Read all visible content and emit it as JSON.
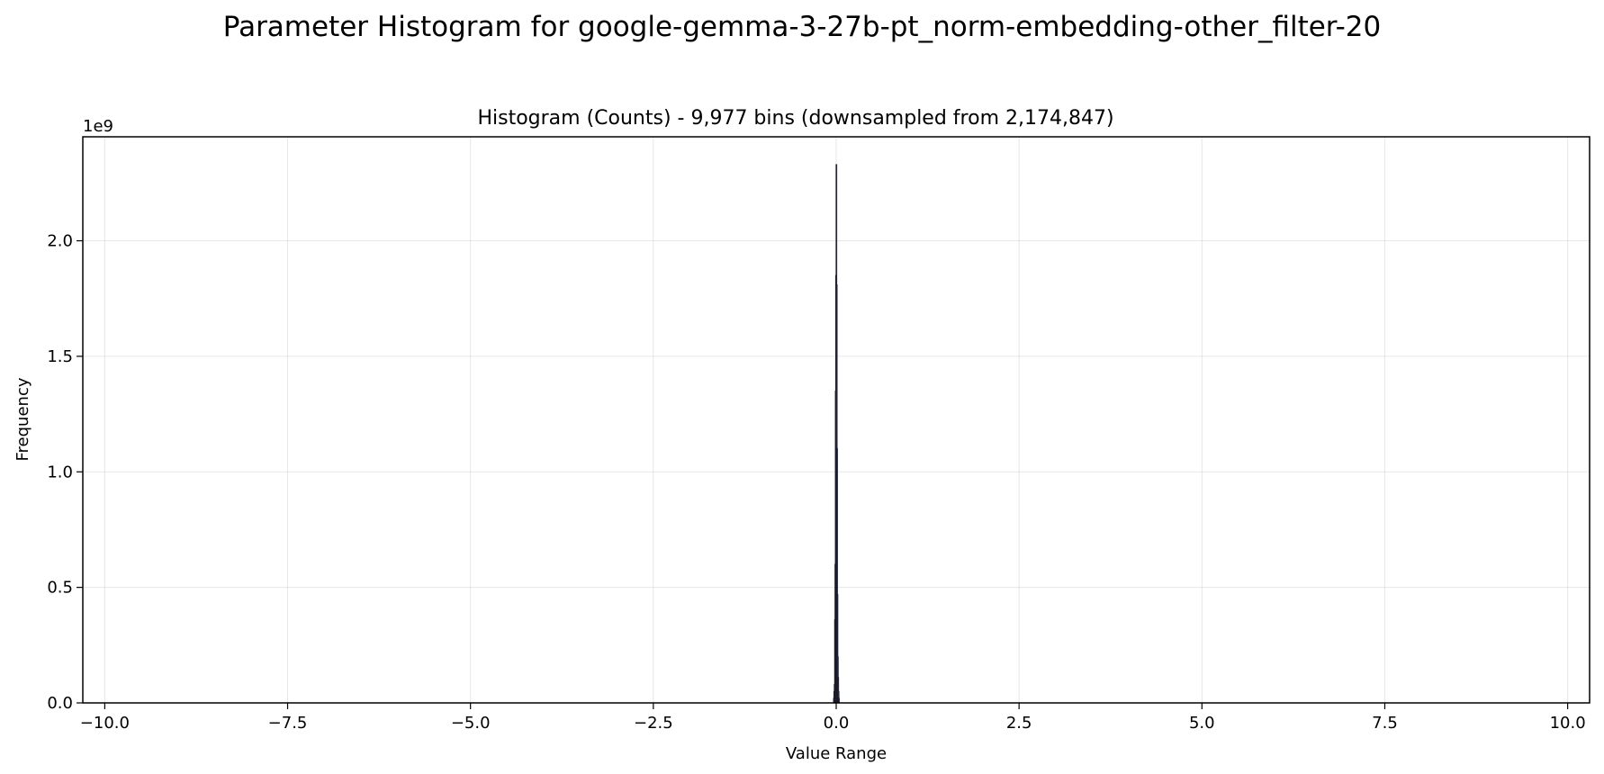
{
  "chart_data": {
    "type": "bar",
    "suptitle": "Parameter Histogram for google-gemma-3-27b-pt_norm-embedding-other_filter-20",
    "title": "Histogram (Counts) - 9,977 bins (downsampled from 2,174,847)",
    "xlabel": "Value Range",
    "ylabel": "Frequency",
    "y_offset_label": "1e9",
    "xlim": [
      -10.3,
      10.3
    ],
    "ylim": [
      0,
      2.45
    ],
    "xticks": [
      -10.0,
      -7.5,
      -5.0,
      -2.5,
      0.0,
      2.5,
      5.0,
      7.5,
      10.0
    ],
    "xtick_labels": [
      "−10.0",
      "−7.5",
      "−5.0",
      "−2.5",
      "0.0",
      "2.5",
      "5.0",
      "7.5",
      "10.0"
    ],
    "yticks": [
      0.0,
      0.5,
      1.0,
      1.5,
      2.0
    ],
    "ytick_labels": [
      "0.0",
      "0.5",
      "1.0",
      "1.5",
      "2.0"
    ],
    "grid": true,
    "bar_color": "#4a5ea8",
    "edge_color": "#1b1b2a",
    "bins": [
      {
        "x": -0.035,
        "y": 0.02
      },
      {
        "x": -0.03,
        "y": 0.05
      },
      {
        "x": -0.025,
        "y": 0.08
      },
      {
        "x": -0.02,
        "y": 0.36
      },
      {
        "x": -0.015,
        "y": 0.6
      },
      {
        "x": -0.01,
        "y": 1.35
      },
      {
        "x": -0.005,
        "y": 1.85
      },
      {
        "x": 0.0,
        "y": 2.33
      },
      {
        "x": 0.005,
        "y": 1.81
      },
      {
        "x": 0.01,
        "y": 1.1
      },
      {
        "x": 0.015,
        "y": 0.47
      },
      {
        "x": 0.02,
        "y": 0.2
      },
      {
        "x": 0.025,
        "y": 0.11
      },
      {
        "x": 0.03,
        "y": 0.05
      },
      {
        "x": 0.035,
        "y": 0.02
      }
    ]
  }
}
